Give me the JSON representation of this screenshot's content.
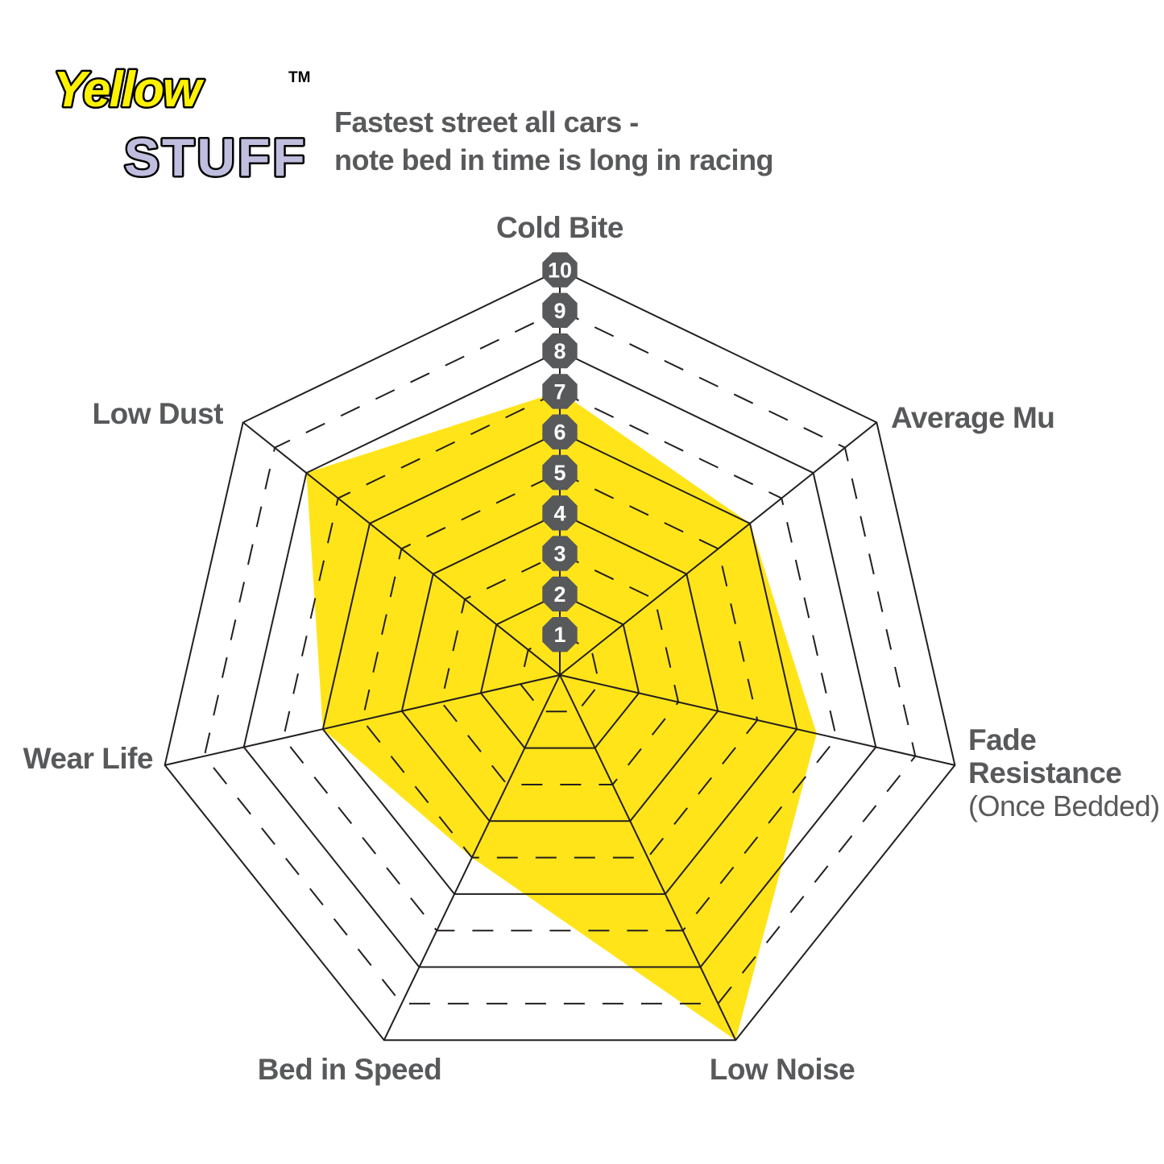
{
  "logo": {
    "line1": "Yellow",
    "line2": "STUFF",
    "trademark": "TM",
    "line1_color": "#fff200",
    "line2_color": "#bfbede"
  },
  "title": {
    "line1": "Fastest street all cars -",
    "line2": "note bed in time is long in racing",
    "color": "#58595b"
  },
  "chart_data": {
    "type": "radar",
    "title": "Fastest street all cars - note bed in time is long in racing",
    "axes": [
      {
        "label": "Cold Bite",
        "value": 7
      },
      {
        "label": "Average Mu",
        "value": 6
      },
      {
        "label": "Fade\nResistance",
        "sublabel": "(Once Bedded)",
        "value": 6.5
      },
      {
        "label": "Low Noise",
        "value": 10
      },
      {
        "label": "Bed in Speed",
        "value": 5
      },
      {
        "label": "Wear Life",
        "value": 6
      },
      {
        "label": "Low Dust",
        "value": 8
      }
    ],
    "series": [
      {
        "name": "Yellowstuff",
        "values": [
          7,
          6,
          6.5,
          10,
          5,
          6,
          8
        ]
      }
    ],
    "scale": {
      "min": 0,
      "max": 10,
      "tick_labels": [
        "10",
        "9",
        "8",
        "7",
        "6",
        "5",
        "4",
        "3",
        "2",
        "1"
      ],
      "solid_rings": [
        2,
        4,
        6,
        8,
        10
      ],
      "dashed_rings": [
        1,
        3,
        5,
        7,
        9
      ]
    },
    "colors": {
      "fill": "#ffe419",
      "grid": "#231f20",
      "marker_fill": "#58595b",
      "marker_text": "#ffffff",
      "label": "#58595b"
    },
    "legend": "none",
    "grid_shape": "heptagon-rings"
  }
}
